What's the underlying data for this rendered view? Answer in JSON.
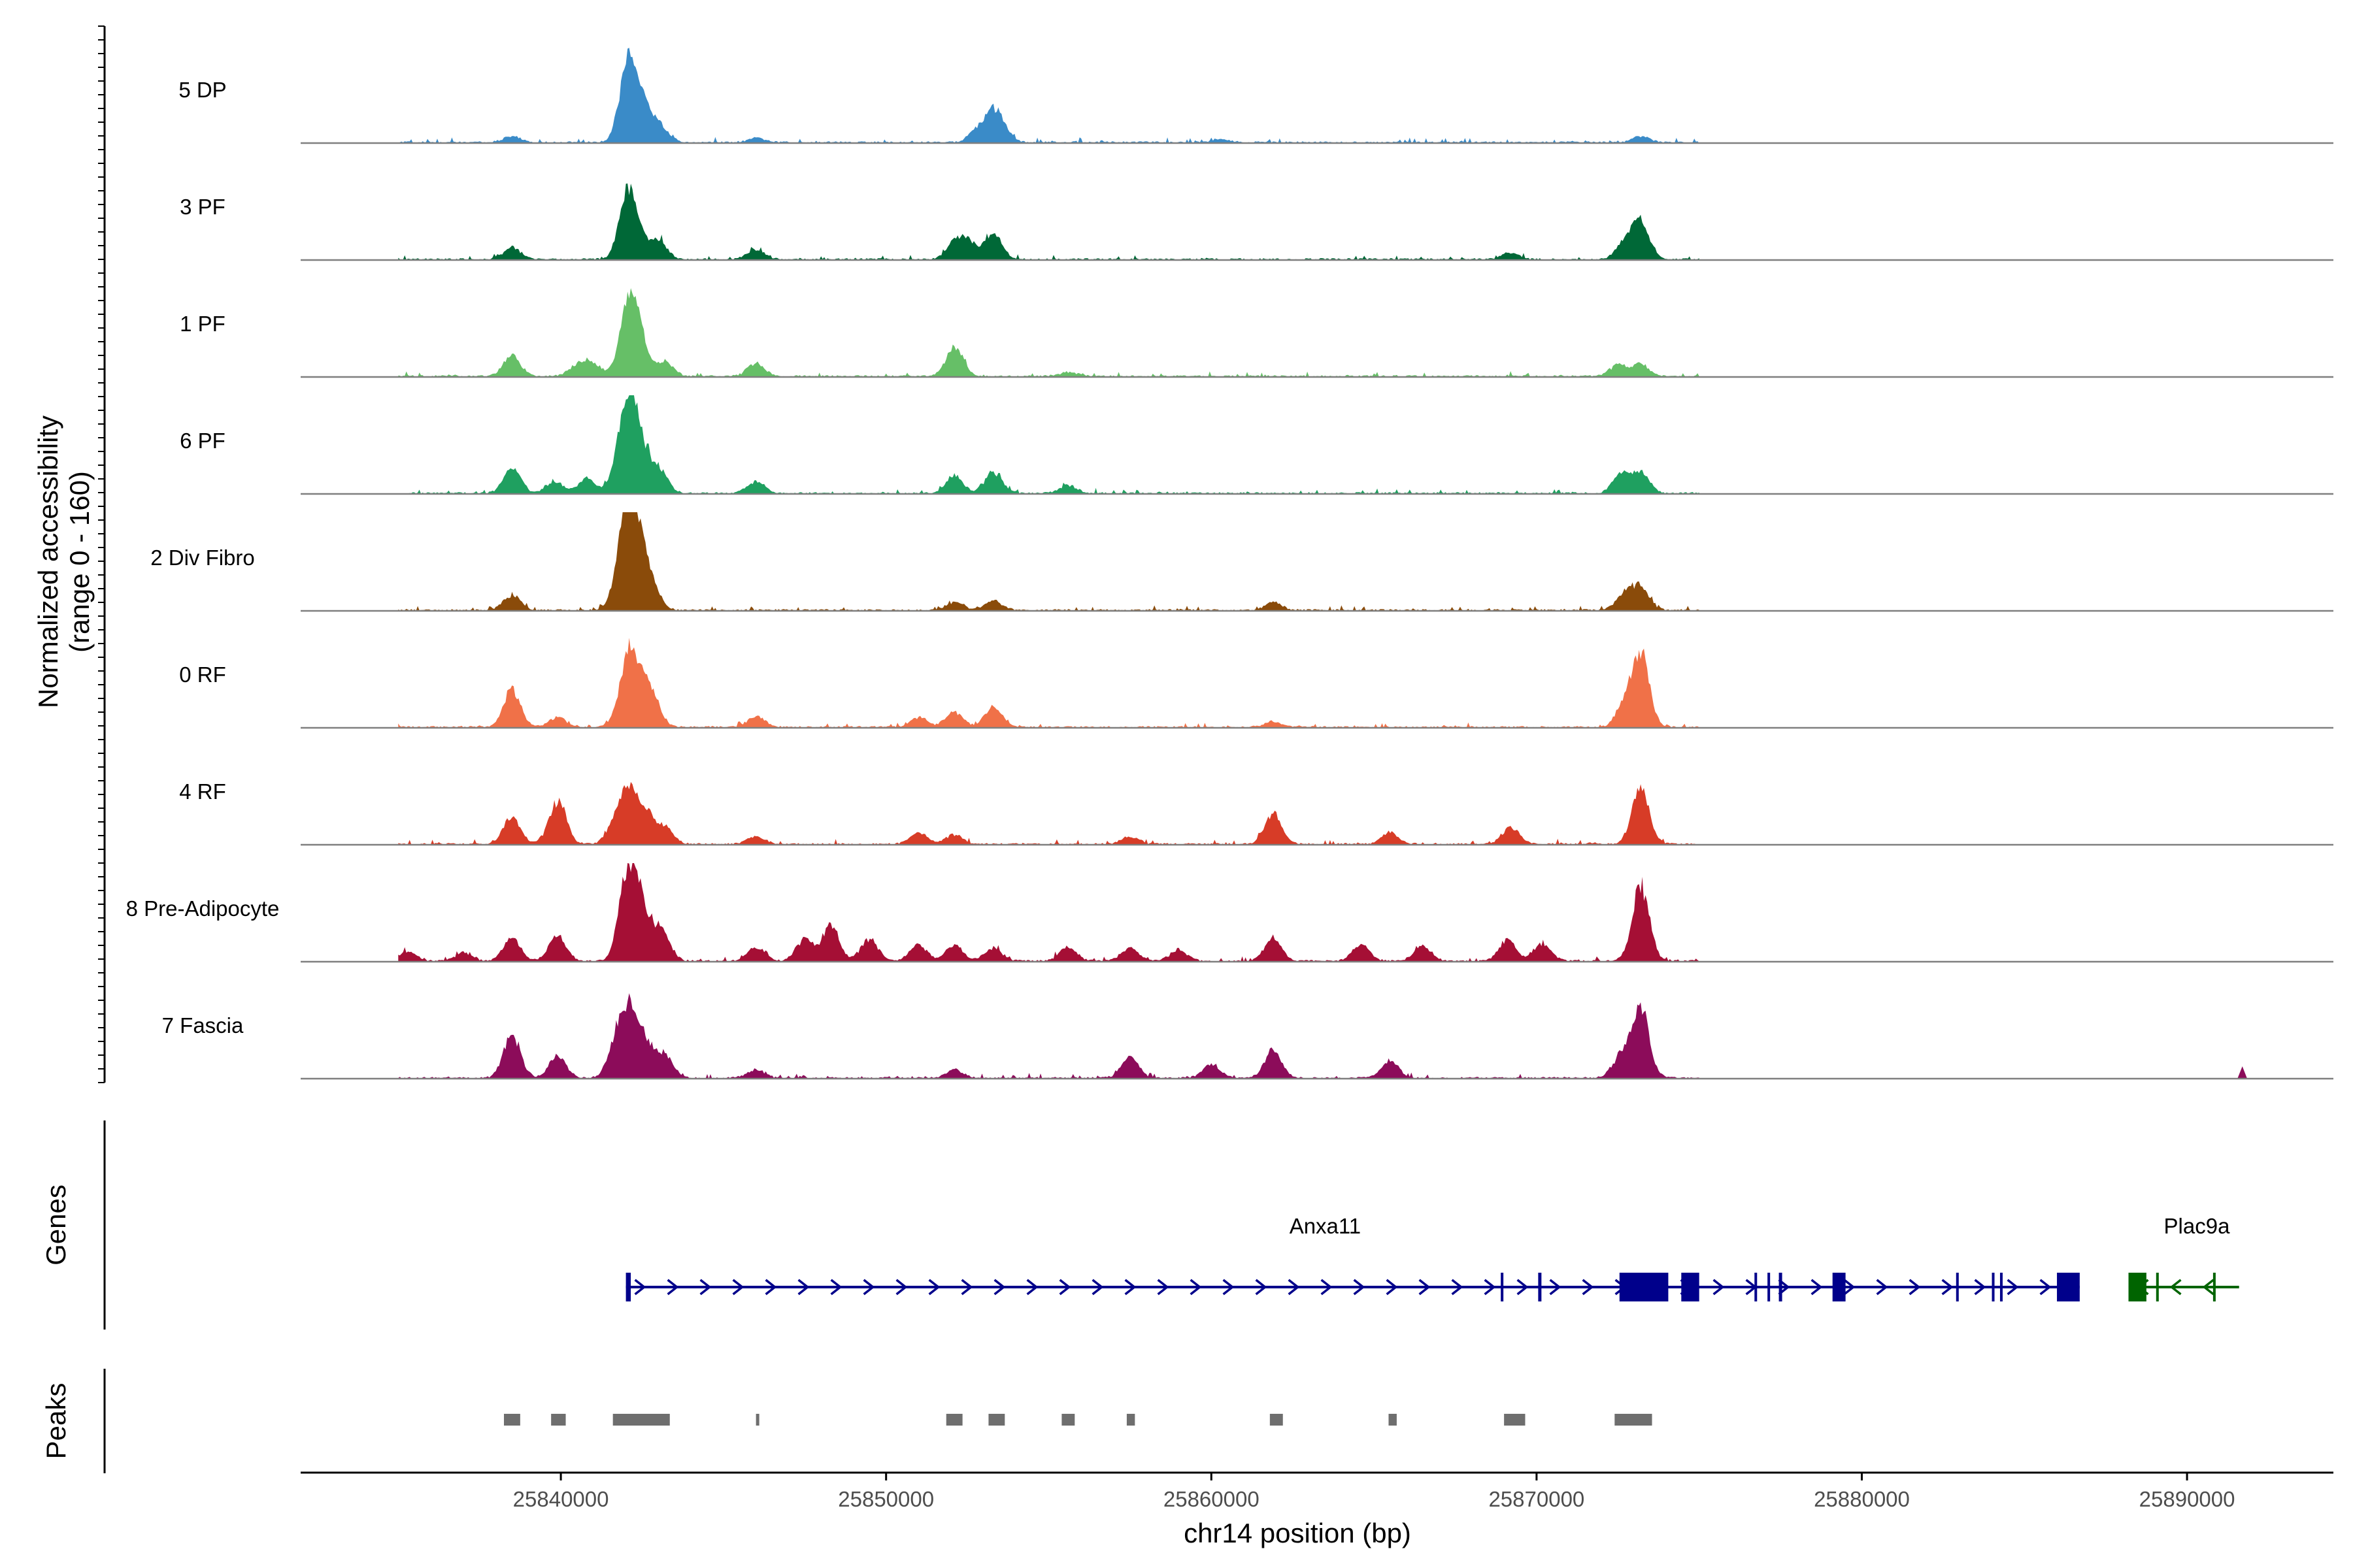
{
  "chart_data": {
    "type": "area",
    "title": "",
    "ylabel": "Normalized accessibility\n(range 0 - 160)",
    "xlabel": "chr14 position (bp)",
    "xlim": [
      25832000,
      25894500
    ],
    "ylim": [
      0,
      160
    ],
    "x_ticks": [
      25840000,
      25850000,
      25860000,
      25870000,
      25880000,
      25890000
    ],
    "x_tick_labels": [
      "25840000",
      "25850000",
      "25860000",
      "25870000",
      "25880000",
      "25890000"
    ],
    "coverage_extent": [
      25835000,
      25875000
    ],
    "tracks": [
      {
        "name": "5 DP",
        "color": "#3A8BC8",
        "peaks": [
          [
            25838500,
            12
          ],
          [
            25842050,
            130
          ],
          [
            25842350,
            45
          ],
          [
            25842700,
            40
          ],
          [
            25843100,
            20
          ],
          [
            25846000,
            8
          ],
          [
            25852800,
            22
          ],
          [
            25853300,
            52
          ],
          [
            25853600,
            15
          ],
          [
            25873200,
            12
          ],
          [
            25860300,
            6
          ]
        ]
      },
      {
        "name": "3 PF",
        "color": "#006837",
        "peaks": [
          [
            25838500,
            22
          ],
          [
            25842050,
            118
          ],
          [
            25842400,
            30
          ],
          [
            25843000,
            35
          ],
          [
            25846000,
            18
          ],
          [
            25852100,
            28
          ],
          [
            25852500,
            30
          ],
          [
            25853300,
            50
          ],
          [
            25869200,
            12
          ],
          [
            25872700,
            30
          ],
          [
            25873200,
            72
          ]
        ]
      },
      {
        "name": "1 PF",
        "color": "#66BF67",
        "peaks": [
          [
            25838500,
            38
          ],
          [
            25840500,
            20
          ],
          [
            25841000,
            22
          ],
          [
            25842050,
            120
          ],
          [
            25842400,
            68
          ],
          [
            25843200,
            28
          ],
          [
            25846000,
            24
          ],
          [
            25852100,
            55
          ],
          [
            25855600,
            8
          ],
          [
            25872500,
            20
          ],
          [
            25873200,
            22
          ]
        ]
      },
      {
        "name": "6 PF",
        "color": "#1FA060",
        "peaks": [
          [
            25838500,
            48
          ],
          [
            25839800,
            22
          ],
          [
            25840800,
            26
          ],
          [
            25841800,
            40
          ],
          [
            25842050,
            125
          ],
          [
            25842400,
            90
          ],
          [
            25843000,
            45
          ],
          [
            25846000,
            22
          ],
          [
            25852100,
            32
          ],
          [
            25853300,
            40
          ],
          [
            25855600,
            15
          ],
          [
            25872600,
            35
          ],
          [
            25873200,
            38
          ]
        ]
      },
      {
        "name": "2 Div Fibro",
        "color": "#8A4B0A",
        "peaks": [
          [
            25838500,
            28
          ],
          [
            25841800,
            30
          ],
          [
            25842050,
            160
          ],
          [
            25842400,
            95
          ],
          [
            25842800,
            40
          ],
          [
            25852100,
            15
          ],
          [
            25853300,
            18
          ],
          [
            25861900,
            14
          ],
          [
            25872700,
            30
          ],
          [
            25873200,
            42
          ]
        ]
      },
      {
        "name": "0 RF",
        "color": "#F07148",
        "peaks": [
          [
            25838500,
            70
          ],
          [
            25839900,
            18
          ],
          [
            25842050,
            120
          ],
          [
            25842400,
            60
          ],
          [
            25842800,
            55
          ],
          [
            25846000,
            20
          ],
          [
            25851000,
            18
          ],
          [
            25852100,
            28
          ],
          [
            25853300,
            38
          ],
          [
            25861900,
            10
          ],
          [
            25872700,
            40
          ],
          [
            25873200,
            135
          ]
        ]
      },
      {
        "name": "4 RF",
        "color": "#D73C27",
        "peaks": [
          [
            25838500,
            50
          ],
          [
            25839900,
            80
          ],
          [
            25841700,
            40
          ],
          [
            25842100,
            85
          ],
          [
            25842600,
            55
          ],
          [
            25843200,
            30
          ],
          [
            25846000,
            14
          ],
          [
            25851000,
            20
          ],
          [
            25852100,
            18
          ],
          [
            25857500,
            14
          ],
          [
            25861900,
            55
          ],
          [
            25865500,
            22
          ],
          [
            25869200,
            30
          ],
          [
            25873200,
            110
          ]
        ]
      },
      {
        "name": "8 Pre-Adipocyte",
        "color": "#A50F35",
        "peaks": [
          [
            25835300,
            18
          ],
          [
            25837000,
            15
          ],
          [
            25838500,
            42
          ],
          [
            25839900,
            48
          ],
          [
            25842050,
            160
          ],
          [
            25842500,
            90
          ],
          [
            25843100,
            55
          ],
          [
            25846000,
            25
          ],
          [
            25847500,
            40
          ],
          [
            25848300,
            65
          ],
          [
            25849500,
            40
          ],
          [
            25851000,
            30
          ],
          [
            25852100,
            30
          ],
          [
            25853300,
            25
          ],
          [
            25855600,
            25
          ],
          [
            25857500,
            25
          ],
          [
            25859000,
            20
          ],
          [
            25861900,
            42
          ],
          [
            25864600,
            30
          ],
          [
            25866500,
            28
          ],
          [
            25869100,
            38
          ],
          [
            25870200,
            32
          ],
          [
            25873200,
            140
          ]
        ]
      },
      {
        "name": "7 Fascia",
        "color": "#8C0C5A",
        "peaks": [
          [
            25838500,
            80
          ],
          [
            25839900,
            40
          ],
          [
            25841700,
            60
          ],
          [
            25842100,
            115
          ],
          [
            25842600,
            60
          ],
          [
            25843200,
            40
          ],
          [
            25846000,
            15
          ],
          [
            25852100,
            15
          ],
          [
            25857500,
            38
          ],
          [
            25860000,
            25
          ],
          [
            25861900,
            52
          ],
          [
            25865500,
            32
          ],
          [
            25872600,
            40
          ],
          [
            25873200,
            130
          ],
          [
            25891700,
            20
          ]
        ]
      }
    ],
    "genes": [
      {
        "name": "Anxa11",
        "strand": "+",
        "color": "#00008B",
        "start": 25842000,
        "end": 25886700,
        "exons": [
          [
            25842000,
            25842150
          ],
          [
            25868900,
            25868950
          ],
          [
            25870050,
            25870150
          ],
          [
            25872550,
            25874050
          ],
          [
            25874450,
            25875000
          ],
          [
            25876700,
            25876750
          ],
          [
            25877100,
            25877150
          ],
          [
            25877450,
            25877550
          ],
          [
            25879100,
            25879500
          ],
          [
            25882900,
            25882950
          ],
          [
            25884000,
            25884050
          ],
          [
            25884250,
            25884300
          ],
          [
            25886000,
            25886700
          ]
        ]
      },
      {
        "name": "Plac9a",
        "strand": "-",
        "color": "#006400",
        "start": 25888200,
        "end": 25891600,
        "exons": [
          [
            25888200,
            25888750
          ],
          [
            25889050,
            25889100
          ],
          [
            25890800,
            25890850
          ]
        ]
      }
    ],
    "peaks_track": [
      [
        25838250,
        25838750
      ],
      [
        25839700,
        25840150
      ],
      [
        25841600,
        25843350
      ],
      [
        25846000,
        25846100
      ],
      [
        25851850,
        25852350
      ],
      [
        25853150,
        25853650
      ],
      [
        25855400,
        25855800
      ],
      [
        25857400,
        25857650
      ],
      [
        25861800,
        25862200
      ],
      [
        25865450,
        25865700
      ],
      [
        25869000,
        25869650
      ],
      [
        25872400,
        25873550
      ]
    ],
    "panel_labels": {
      "genes": "Genes",
      "peaks": "Peaks"
    }
  }
}
